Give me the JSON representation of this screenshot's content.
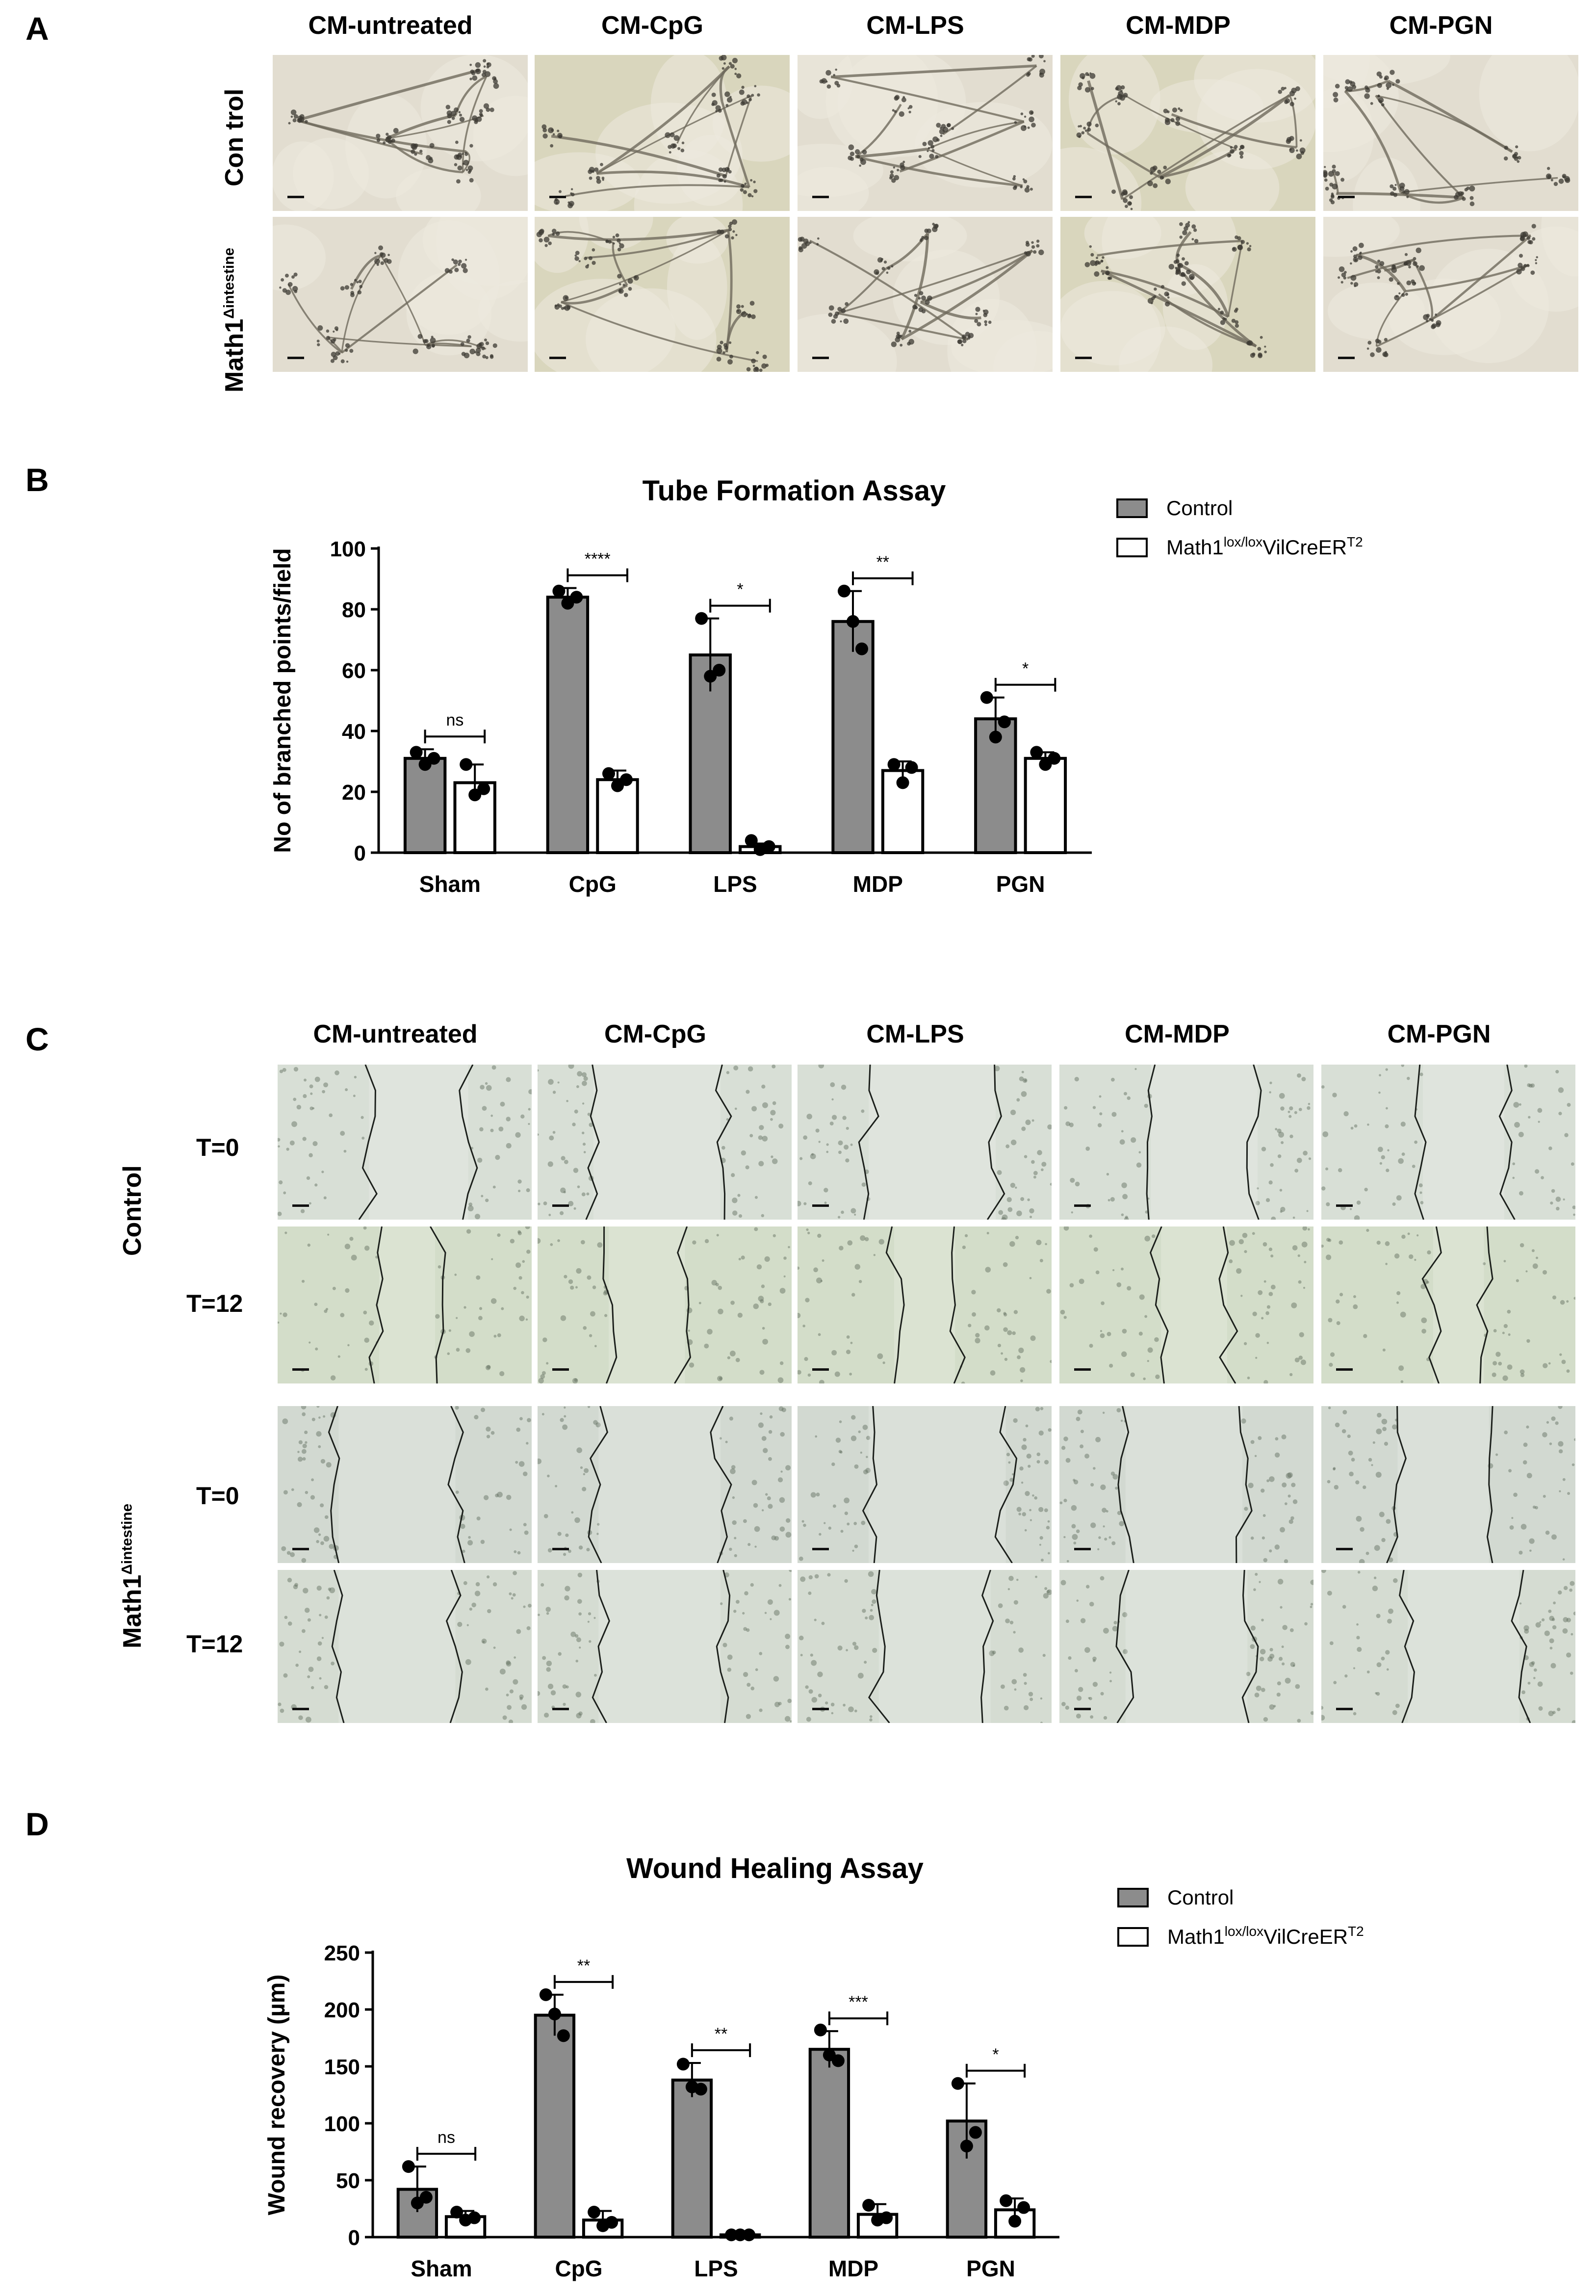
{
  "panels": {
    "A": "A",
    "B": "B",
    "C": "C",
    "D": "D"
  },
  "columns": [
    "CM-untreated",
    "CM-CpG",
    "CM-LPS",
    "CM-MDP",
    "CM-PGN"
  ],
  "panel_a": {
    "row1": "Con trol",
    "row2_main": "Math1",
    "row2_sup": "Δintestine"
  },
  "panel_c": {
    "group1": "Control",
    "group2_main": "Math1",
    "group2_sup": "Δintestine",
    "t0": "T=0",
    "t12": "T=12"
  },
  "colors": {
    "control": "#8c8c8c",
    "math1": "#ffffff",
    "tube_bg": "#e2ddd0",
    "tube_bg2": "#d9d6bd",
    "wound_bg": "#d6ddd0"
  },
  "chart_data": [
    {
      "type": "bar",
      "title": "Tube Formation Assay",
      "ylabel": "No of branched points/field",
      "xlabel": "",
      "categories": [
        "Sham",
        "CpG",
        "LPS",
        "MDP",
        "PGN"
      ],
      "ylim": [
        0,
        100
      ],
      "yticks": [
        0,
        20,
        40,
        60,
        80,
        100
      ],
      "legend": {
        "control": "Control",
        "math1_main": "Math1",
        "math1_sup1": "lox/lox",
        "math1_mid": "VilCreER",
        "math1_sup2": "T2"
      },
      "series": [
        {
          "name": "Control",
          "values": [
            31,
            84,
            65,
            76,
            44
          ],
          "err": [
            3,
            3,
            12,
            10,
            7
          ],
          "points": [
            [
              33,
              29,
              31
            ],
            [
              86,
              82,
              84
            ],
            [
              77,
              58,
              60
            ],
            [
              86,
              76,
              67
            ],
            [
              51,
              38,
              43
            ]
          ]
        },
        {
          "name": "Math1lox/loxVilCreERT2",
          "values": [
            23,
            24,
            2,
            27,
            31
          ],
          "err": [
            6,
            3,
            1,
            3,
            2
          ],
          "points": [
            [
              29,
              19,
              21
            ],
            [
              26,
              22,
              24
            ],
            [
              4,
              1,
              2
            ],
            [
              29,
              23,
              28
            ],
            [
              33,
              29,
              31
            ]
          ]
        }
      ],
      "significance": [
        "ns",
        "****",
        "*",
        "**",
        "*"
      ]
    },
    {
      "type": "bar",
      "title": "Wound Healing Assay",
      "ylabel": "Wound recovery (µm)",
      "xlabel": "",
      "categories": [
        "Sham",
        "CpG",
        "LPS",
        "MDP",
        "PGN"
      ],
      "ylim": [
        0,
        250
      ],
      "yticks": [
        0,
        50,
        100,
        150,
        200,
        250
      ],
      "legend": {
        "control": "Control",
        "math1_main": "Math1",
        "math1_sup1": "lox/lox",
        "math1_mid": "VilCreER",
        "math1_sup2": "T2"
      },
      "series": [
        {
          "name": "Control",
          "values": [
            42,
            195,
            138,
            165,
            102
          ],
          "err": [
            20,
            18,
            15,
            16,
            33
          ],
          "points": [
            [
              62,
              30,
              35
            ],
            [
              213,
              196,
              177
            ],
            [
              152,
              132,
              130
            ],
            [
              182,
              160,
              155
            ],
            [
              135,
              80,
              92
            ]
          ]
        },
        {
          "name": "Math1lox/loxVilCreERT2",
          "values": [
            18,
            15,
            2,
            20,
            24
          ],
          "err": [
            5,
            8,
            1,
            9,
            10
          ],
          "points": [
            [
              22,
              15,
              17
            ],
            [
              22,
              10,
              13
            ],
            [
              2,
              2,
              2
            ],
            [
              28,
              15,
              17
            ],
            [
              32,
              14,
              26
            ]
          ]
        }
      ],
      "significance": [
        "ns",
        "**",
        "**",
        "***",
        "*"
      ]
    }
  ]
}
